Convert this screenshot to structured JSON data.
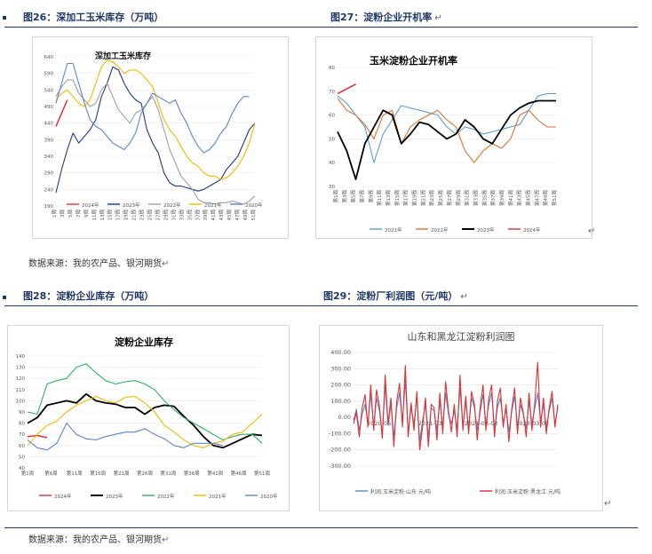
{
  "header_top": {
    "left_title": "图26：深加工玉米库存（万吨）",
    "right_title": "图27：淀粉企业开机率",
    "return_mark": "↵"
  },
  "header_bottom": {
    "left_title": "图28：淀粉企业库存（万吨）",
    "right_title": "图29：淀粉厂利润图（元/吨）",
    "return_mark": "↵"
  },
  "source_top": "数据来源：我的农产品、银河期货",
  "source_bottom": "数据来源：我的农产品、银河期货",
  "colors": {
    "c2024": "#e03030",
    "c2023": "#1f3a80",
    "c2022": "#a0a0a0",
    "c2021": "#f0b800",
    "c2020": "#5b85c8",
    "k2023": "#000000",
    "g2022": "#30b060",
    "o2022": "#e07030",
    "b2021": "#5b9bd5"
  },
  "charts": [
    {
      "type": "line",
      "title": "深加工玉米库存",
      "ylim": [
        190,
        640
      ],
      "yticks": [
        "640",
        "590",
        "540",
        "490",
        "440",
        "390",
        "340",
        "290",
        "240",
        "190"
      ],
      "xticks": [
        "1周",
        "3周",
        "5周",
        "7周",
        "9周",
        "11周",
        "13周",
        "15周",
        "17周",
        "19周",
        "21周",
        "23周",
        "25周",
        "27周",
        "29周",
        "31周",
        "33周",
        "35周",
        "37周",
        "39周",
        "41周",
        "43周",
        "45周",
        "47周",
        "49周",
        "51周"
      ],
      "legend": [
        "2024年",
        "2023年",
        "2022年",
        "2021年",
        "2020年"
      ],
      "series": [
        {
          "name": "2024年",
          "color": "#e03030",
          "values": [
            430,
            470,
            510
          ]
        },
        {
          "name": "2023年",
          "color": "#1f3a80",
          "values": [
            230,
            300,
            360,
            410,
            380,
            400,
            420,
            450,
            520,
            560,
            610,
            600,
            560,
            530,
            510,
            500,
            420,
            380,
            350,
            290,
            260,
            250,
            250,
            245,
            240,
            235,
            240,
            250,
            260,
            270,
            300,
            320,
            340,
            380,
            420,
            440
          ]
        },
        {
          "name": "2022年",
          "color": "#a0a0a0",
          "values": [
            520,
            550,
            570,
            570,
            530,
            510,
            490,
            500,
            540,
            560,
            520,
            480,
            460,
            440,
            470,
            480,
            500,
            520,
            480,
            420,
            360,
            320,
            280,
            260,
            240,
            210,
            200,
            200,
            195,
            200,
            200,
            205,
            200,
            195,
            205,
            220
          ]
        },
        {
          "name": "2021年",
          "color": "#f0b800",
          "values": [
            510,
            530,
            540,
            520,
            500,
            490,
            510,
            560,
            610,
            630,
            625,
            610,
            590,
            600,
            600,
            590,
            570,
            550,
            500,
            450,
            420,
            400,
            370,
            340,
            320,
            310,
            290,
            280,
            280,
            270,
            275,
            290,
            310,
            340,
            380,
            440
          ]
        },
        {
          "name": "2020年",
          "color": "#5b85c8",
          "values": [
            500,
            560,
            620,
            620,
            560,
            500,
            450,
            430,
            420,
            400,
            380,
            370,
            360,
            380,
            410,
            470,
            500,
            530,
            520,
            510,
            500,
            510,
            470,
            440,
            400,
            370,
            350,
            360,
            380,
            410,
            430,
            470,
            500,
            520,
            520
          ]
        }
      ]
    },
    {
      "type": "line",
      "title": "玉米淀粉企业开机率",
      "ylim": [
        30,
        80
      ],
      "yticks": [
        "80",
        "70",
        "60",
        "50",
        "40",
        "30"
      ],
      "xticks": [
        "第1周",
        "第3周",
        "第5周",
        "第7周",
        "第9周",
        "第11周",
        "第13周",
        "第15周",
        "第17周",
        "第19周",
        "第21周",
        "第23周",
        "第25周",
        "第27周",
        "第29周",
        "第31周",
        "第33周",
        "第35周",
        "第37周",
        "第39周",
        "第41周",
        "第43周",
        "第45周",
        "第47周",
        "第49周",
        "第51周"
      ],
      "legend": [
        "2021年",
        "2022年",
        "2023年",
        "2024年"
      ],
      "series": [
        {
          "name": "2021年",
          "color": "#5b9bd5",
          "values": [
            68,
            65,
            60,
            55,
            40,
            52,
            58,
            64,
            63,
            62,
            61,
            60,
            55,
            52,
            55,
            54,
            52,
            53,
            54,
            55,
            56,
            62,
            68,
            69,
            69
          ]
        },
        {
          "name": "2022年",
          "color": "#e07030",
          "values": [
            67,
            62,
            60,
            56,
            50,
            60,
            62,
            48,
            55,
            58,
            60,
            62,
            58,
            55,
            45,
            40,
            45,
            48,
            46,
            50,
            60,
            62,
            58,
            55,
            55
          ]
        },
        {
          "name": "2023年",
          "color": "#000000",
          "values": [
            53,
            45,
            33,
            48,
            55,
            62,
            60,
            48,
            52,
            57,
            56,
            53,
            50,
            52,
            58,
            55,
            50,
            48,
            54,
            60,
            63,
            65,
            66,
            66,
            66
          ]
        },
        {
          "name": "2024年",
          "color": "#e03030",
          "values": [
            69,
            71,
            73
          ]
        }
      ]
    },
    {
      "type": "line",
      "title": "淀粉企业库存",
      "ylim": [
        40,
        140
      ],
      "yticks": [
        "140",
        "130",
        "120",
        "110",
        "100",
        "90",
        "80",
        "70",
        "60",
        "50",
        "40"
      ],
      "xticks": [
        "第1周",
        "第6周",
        "第11周",
        "第16周",
        "第21周",
        "第26周",
        "第31周",
        "第36周",
        "第41周",
        "第46周",
        "第51周"
      ],
      "legend": [
        "2024年",
        "2023年",
        "2022年",
        "2021年",
        "2020年"
      ],
      "series": [
        {
          "name": "2024年",
          "color": "#e03030",
          "values": [
            68,
            69,
            67
          ]
        },
        {
          "name": "2023年",
          "color": "#000000",
          "values": [
            80,
            85,
            96,
            98,
            100,
            98,
            106,
            100,
            98,
            97,
            94,
            94,
            88,
            94,
            96,
            95,
            86,
            78,
            68,
            60,
            58,
            62,
            66,
            70,
            69
          ]
        },
        {
          "name": "2022年",
          "color": "#30b060",
          "values": [
            90,
            88,
            115,
            118,
            120,
            130,
            133,
            125,
            118,
            115,
            117,
            118,
            115,
            110,
            100,
            92,
            85,
            80,
            75,
            70,
            65,
            68,
            70,
            70,
            62
          ]
        },
        {
          "name": "2021年",
          "color": "#f0b800",
          "values": [
            60,
            70,
            78,
            82,
            90,
            96,
            100,
            104,
            100,
            98,
            103,
            104,
            98,
            90,
            78,
            72,
            65,
            60,
            58,
            62,
            64,
            70,
            72,
            80,
            88
          ]
        },
        {
          "name": "2020年",
          "color": "#5b85c8",
          "values": [
            65,
            58,
            56,
            62,
            80,
            70,
            66,
            65,
            68,
            70,
            72,
            72,
            75,
            70,
            66,
            60,
            58,
            62,
            62,
            62,
            60
          ]
        }
      ]
    },
    {
      "type": "line",
      "title": "山东和黑龙江淀粉利润图",
      "ylim": [
        -300,
        400
      ],
      "yticks": [
        "400.00",
        "300.00",
        "200.00",
        "100.00",
        "0.00",
        "-100.00",
        "-200.00",
        "-300.00"
      ],
      "xticks": [
        "2020-06",
        "2021-03",
        "2021-03-02",
        "2023-03-02"
      ],
      "legend": [
        "利润:玉米淀粉:山东 元/吨",
        "利润:玉米淀粉:黑龙江 元/吨"
      ],
      "series": [
        {
          "name": "利润:玉米淀粉:山东 元/吨",
          "color": "#5b85c8",
          "values": [
            -20,
            50,
            -80,
            20,
            80,
            -40,
            150,
            -60,
            120,
            40,
            -100,
            200,
            -50,
            80,
            -120,
            60,
            150,
            -30,
            230,
            -90,
            60,
            -40,
            120,
            -150,
            -20,
            80,
            -120,
            60,
            40,
            -80,
            100,
            -60,
            150,
            20,
            -40,
            40,
            -70,
            180,
            -50,
            90,
            -60,
            120,
            60,
            -80,
            30,
            140,
            -40,
            80,
            150,
            -70,
            60,
            120,
            -30,
            50,
            -90,
            40,
            130,
            -60,
            80,
            20,
            -70,
            100,
            -40,
            60,
            150,
            -20,
            80,
            -60,
            40,
            120,
            -40,
            60
          ]
        },
        {
          "name": "利润:玉米淀粉:黑龙江 元/吨",
          "color": "#e03030",
          "values": [
            -40,
            30,
            -120,
            60,
            140,
            -60,
            200,
            -80,
            170,
            70,
            -130,
            260,
            -40,
            120,
            -180,
            100,
            210,
            -60,
            320,
            -120,
            90,
            -80,
            160,
            -200,
            -60,
            120,
            -180,
            80,
            60,
            -140,
            150,
            -100,
            220,
            40,
            -90,
            80,
            -120,
            260,
            -80,
            130,
            -100,
            160,
            80,
            -140,
            60,
            200,
            -80,
            120,
            200,
            -120,
            100,
            180,
            -60,
            80,
            -150,
            60,
            180,
            -100,
            120,
            30,
            -120,
            150,
            -80,
            90,
            340,
            -60,
            120,
            -100,
            60,
            160,
            -60,
            80
          ]
        }
      ]
    }
  ]
}
